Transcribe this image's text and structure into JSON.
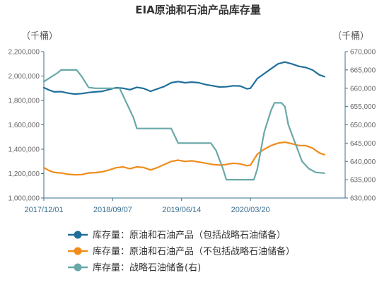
{
  "chart_data": {
    "type": "line",
    "title": "EIA原油和石油产品库存量",
    "y_left_unit": "（千桶）",
    "y_right_unit": "（千桶）",
    "y_left_ticks": [
      "2,200,000",
      "2,000,000",
      "1,800,000",
      "1,600,000",
      "1,400,000",
      "1,200,000",
      "1,000,000"
    ],
    "y_right_ticks": [
      "670,000",
      "665,000",
      "660,000",
      "655,000",
      "650,000",
      "645,000",
      "640,000",
      "635,000",
      "630,000"
    ],
    "y_left_range": [
      1000000,
      2200000
    ],
    "y_right_range": [
      630000,
      670000
    ],
    "x_range": [
      0,
      175
    ],
    "x_ticks": [
      {
        "label": "2017/12/01",
        "x": 0
      },
      {
        "label": "2018/09/07",
        "x": 40
      },
      {
        "label": "2019/06/14",
        "x": 80
      },
      {
        "label": "2020/03/20",
        "x": 120
      }
    ],
    "colors": {
      "incl_spr": "#1f6f9b",
      "excl_spr": "#f08c1c",
      "spr": "#6aa8a8",
      "axis": "#3a6f8f"
    },
    "series": [
      {
        "name": "库存量：原油和石油产品（包括战略石油储备）",
        "key": "incl_spr",
        "axis": "left",
        "points": [
          [
            0,
            1905000
          ],
          [
            3,
            1885000
          ],
          [
            6,
            1870000
          ],
          [
            10,
            1872000
          ],
          [
            14,
            1860000
          ],
          [
            18,
            1852000
          ],
          [
            22,
            1856000
          ],
          [
            26,
            1865000
          ],
          [
            30,
            1870000
          ],
          [
            34,
            1875000
          ],
          [
            38,
            1890000
          ],
          [
            42,
            1905000
          ],
          [
            46,
            1900000
          ],
          [
            50,
            1888000
          ],
          [
            54,
            1908000
          ],
          [
            58,
            1898000
          ],
          [
            62,
            1875000
          ],
          [
            66,
            1895000
          ],
          [
            70,
            1915000
          ],
          [
            74,
            1945000
          ],
          [
            78,
            1955000
          ],
          [
            82,
            1945000
          ],
          [
            86,
            1950000
          ],
          [
            90,
            1945000
          ],
          [
            94,
            1930000
          ],
          [
            98,
            1920000
          ],
          [
            102,
            1910000
          ],
          [
            106,
            1912000
          ],
          [
            110,
            1920000
          ],
          [
            114,
            1918000
          ],
          [
            118,
            1895000
          ],
          [
            120,
            1900000
          ],
          [
            124,
            1980000
          ],
          [
            128,
            2020000
          ],
          [
            132,
            2060000
          ],
          [
            136,
            2100000
          ],
          [
            140,
            2115000
          ],
          [
            144,
            2100000
          ],
          [
            148,
            2080000
          ],
          [
            152,
            2070000
          ],
          [
            156,
            2050000
          ],
          [
            160,
            2010000
          ],
          [
            163,
            1995000
          ]
        ]
      },
      {
        "name": "库存量：原油和石油产品（不包括战略石油储备）",
        "key": "excl_spr",
        "axis": "left",
        "points": [
          [
            0,
            1250000
          ],
          [
            3,
            1225000
          ],
          [
            6,
            1210000
          ],
          [
            10,
            1205000
          ],
          [
            14,
            1195000
          ],
          [
            18,
            1190000
          ],
          [
            22,
            1192000
          ],
          [
            26,
            1205000
          ],
          [
            30,
            1208000
          ],
          [
            34,
            1215000
          ],
          [
            38,
            1230000
          ],
          [
            42,
            1248000
          ],
          [
            46,
            1255000
          ],
          [
            50,
            1240000
          ],
          [
            54,
            1255000
          ],
          [
            58,
            1250000
          ],
          [
            62,
            1230000
          ],
          [
            66,
            1250000
          ],
          [
            70,
            1275000
          ],
          [
            74,
            1300000
          ],
          [
            78,
            1310000
          ],
          [
            82,
            1300000
          ],
          [
            86,
            1305000
          ],
          [
            90,
            1295000
          ],
          [
            94,
            1285000
          ],
          [
            98,
            1275000
          ],
          [
            102,
            1270000
          ],
          [
            106,
            1275000
          ],
          [
            110,
            1285000
          ],
          [
            114,
            1280000
          ],
          [
            118,
            1265000
          ],
          [
            120,
            1270000
          ],
          [
            124,
            1360000
          ],
          [
            128,
            1400000
          ],
          [
            132,
            1430000
          ],
          [
            136,
            1450000
          ],
          [
            140,
            1458000
          ],
          [
            144,
            1445000
          ],
          [
            148,
            1430000
          ],
          [
            152,
            1430000
          ],
          [
            156,
            1410000
          ],
          [
            160,
            1370000
          ],
          [
            163,
            1355000
          ]
        ]
      },
      {
        "name": "库存量：战略石油储备(右)",
        "key": "spr",
        "axis": "right",
        "points": [
          [
            0,
            661800
          ],
          [
            4,
            663000
          ],
          [
            8,
            664200
          ],
          [
            10,
            665000
          ],
          [
            12,
            665000
          ],
          [
            16,
            665000
          ],
          [
            19,
            665000
          ],
          [
            22,
            663200
          ],
          [
            26,
            660200
          ],
          [
            30,
            660000
          ],
          [
            34,
            660000
          ],
          [
            38,
            660000
          ],
          [
            44,
            660000
          ],
          [
            48,
            656000
          ],
          [
            52,
            652000
          ],
          [
            54,
            649000
          ],
          [
            58,
            649000
          ],
          [
            62,
            649000
          ],
          [
            66,
            649000
          ],
          [
            70,
            649000
          ],
          [
            74,
            649000
          ],
          [
            76,
            647000
          ],
          [
            78,
            645000
          ],
          [
            82,
            645000
          ],
          [
            86,
            645000
          ],
          [
            90,
            645000
          ],
          [
            94,
            645000
          ],
          [
            97,
            645000
          ],
          [
            100,
            643000
          ],
          [
            104,
            638000
          ],
          [
            106,
            635000
          ],
          [
            110,
            635000
          ],
          [
            114,
            635000
          ],
          [
            118,
            635000
          ],
          [
            122,
            635000
          ],
          [
            124,
            638000
          ],
          [
            128,
            648000
          ],
          [
            132,
            654000
          ],
          [
            134,
            656000
          ],
          [
            138,
            656000
          ],
          [
            140,
            655000
          ],
          [
            142,
            650000
          ],
          [
            146,
            645000
          ],
          [
            150,
            640000
          ],
          [
            154,
            638000
          ],
          [
            158,
            637000
          ],
          [
            163,
            636800
          ]
        ]
      }
    ],
    "legend": [
      {
        "label": "库存量：原油和石油产品（包括战略石油储备）",
        "key": "incl_spr"
      },
      {
        "label": "库存量：原油和石油产品（不包括战略石油储备）",
        "key": "excl_spr"
      },
      {
        "label": "库存量：战略石油储备(右)",
        "key": "spr"
      }
    ],
    "legend_position": "bottom",
    "grid": false
  }
}
